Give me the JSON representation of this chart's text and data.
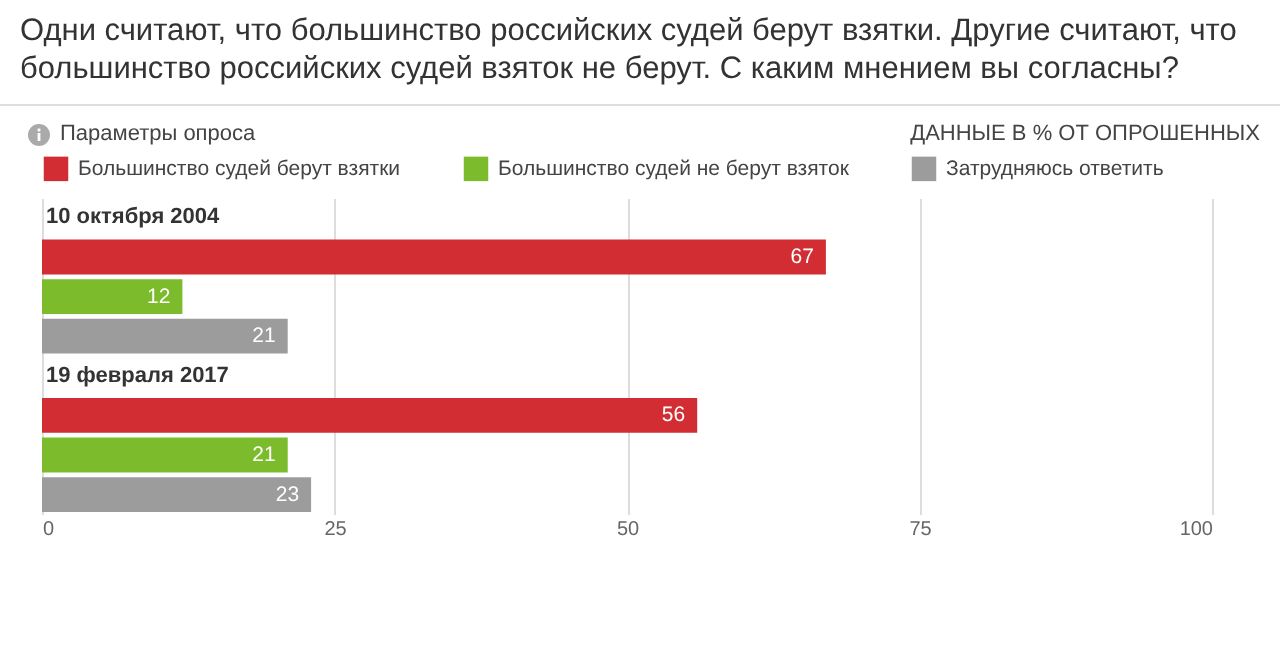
{
  "chart_data": {
    "type": "bar",
    "orientation": "horizontal",
    "title": "Одни считают, что большинство российских судей берут взятки. Другие считают, что большинство российских судей взяток не берут. С каким мнением вы согласны?",
    "annotations": [
      "Параметры опроса",
      "ДАННЫЕ В % ОТ ОПРОШЕННЫХ"
    ],
    "categories": [
      "10 октября 2004",
      "19 февраля 2017"
    ],
    "series": [
      {
        "name": "Большинство судей берут взятки",
        "color": "#d12d33",
        "values": [
          67,
          56
        ]
      },
      {
        "name": "Большинство судей не берут взяток",
        "color": "#7cbb2c",
        "values": [
          12,
          21
        ]
      },
      {
        "name": "Затрудняюсь ответить",
        "color": "#9c9c9c",
        "values": [
          21,
          23
        ]
      }
    ],
    "xlim": [
      0,
      100
    ],
    "xticks": [
      0,
      25,
      50,
      75,
      100
    ],
    "grid": "x",
    "legend": "top left",
    "data_labels": true
  }
}
